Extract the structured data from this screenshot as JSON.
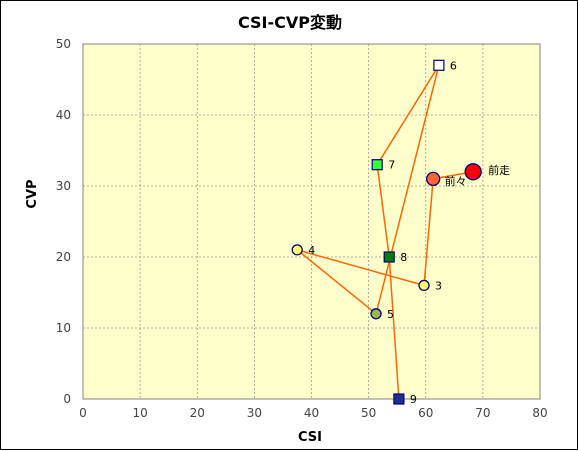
{
  "chart_data": {
    "type": "scatter",
    "title": "CSI-CVP変動",
    "xlabel": "CSI",
    "ylabel": "CVP",
    "xlim": [
      0,
      80
    ],
    "ylim": [
      0,
      50
    ],
    "xticks": [
      0,
      10,
      20,
      30,
      40,
      50,
      60,
      70,
      80
    ],
    "yticks": [
      0,
      10,
      20,
      30,
      40,
      50
    ],
    "grid": true,
    "background": "#ffffcc",
    "line_color": "#ff6600",
    "points": [
      {
        "label": "9",
        "x": 55.3,
        "y": 0,
        "shape": "square",
        "fill": "#1f2f8f",
        "stroke": "#000080",
        "size": "small"
      },
      {
        "label": "8",
        "x": 53.6,
        "y": 20,
        "shape": "square",
        "fill": "#008000",
        "stroke": "#000080",
        "size": "small"
      },
      {
        "label": "7",
        "x": 51.5,
        "y": 33,
        "shape": "square",
        "fill": "#33ff33",
        "stroke": "#000080",
        "size": "small"
      },
      {
        "label": "6",
        "x": 62.3,
        "y": 47,
        "shape": "square",
        "fill": "#ffffff",
        "stroke": "#000080",
        "size": "small"
      },
      {
        "label": "5",
        "x": 51.3,
        "y": 12,
        "shape": "circle",
        "fill": "#99bb44",
        "stroke": "#000080",
        "size": "small"
      },
      {
        "label": "4",
        "x": 37.5,
        "y": 21,
        "shape": "circle",
        "fill": "#ffff66",
        "stroke": "#000080",
        "size": "small"
      },
      {
        "label": "3",
        "x": 59.7,
        "y": 16,
        "shape": "circle",
        "fill": "#ffff66",
        "stroke": "#000080",
        "size": "small"
      },
      {
        "label": "前々",
        "x": 61.3,
        "y": 31,
        "shape": "circle",
        "fill": "#ff6633",
        "stroke": "#000080",
        "size": "medium"
      },
      {
        "label": "前走",
        "x": 68.3,
        "y": 32,
        "shape": "circle",
        "fill": "#ff0000",
        "stroke": "#000080",
        "size": "large"
      }
    ]
  }
}
